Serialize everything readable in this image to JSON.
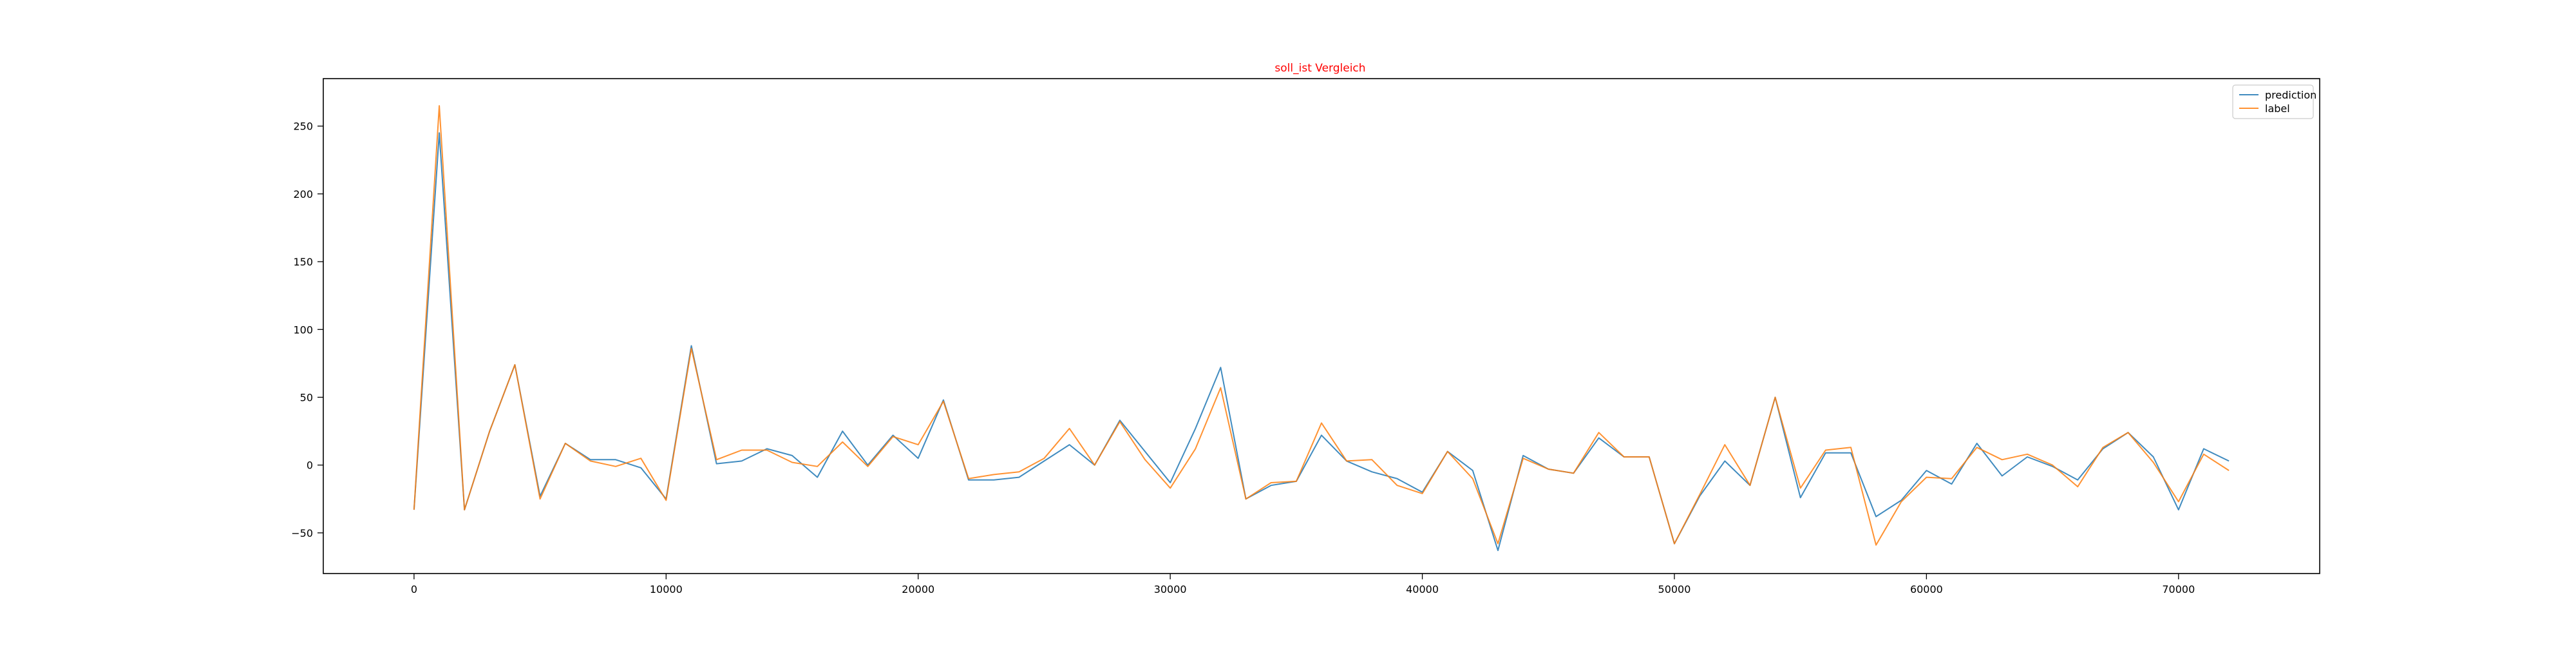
{
  "chart_data": {
    "type": "line",
    "title": "soll_ist Vergleich",
    "title_color": "#ff0000",
    "xlabel": "",
    "ylabel": "",
    "xlim": [
      -3600,
      75600
    ],
    "ylim": [
      -80,
      285
    ],
    "xticks": [
      0,
      10000,
      20000,
      30000,
      40000,
      50000,
      60000,
      70000
    ],
    "yticks": [
      -50,
      0,
      50,
      100,
      150,
      200,
      250
    ],
    "grid": false,
    "legend_position": "top-right",
    "x": [
      0,
      1000,
      2000,
      3000,
      4000,
      5000,
      6000,
      7000,
      8000,
      9000,
      10000,
      11000,
      12000,
      13000,
      14000,
      15000,
      16000,
      17000,
      18000,
      19000,
      20000,
      21000,
      22000,
      23000,
      24000,
      25000,
      26000,
      27000,
      28000,
      29000,
      30000,
      31000,
      32000,
      33000,
      34000,
      35000,
      36000,
      37000,
      38000,
      39000,
      40000,
      41000,
      42000,
      43000,
      44000,
      45000,
      46000,
      47000,
      48000,
      49000,
      50000,
      51000,
      52000,
      53000,
      54000,
      55000,
      56000,
      57000,
      58000,
      59000,
      60000,
      61000,
      62000,
      63000,
      64000,
      65000,
      66000,
      67000,
      68000,
      69000,
      70000,
      71000,
      72000
    ],
    "series": [
      {
        "name": "prediction",
        "color": "#1f77b4",
        "values": [
          -33,
          245,
          -33,
          25,
          74,
          -23,
          16,
          4,
          4,
          -2,
          -25,
          88,
          1,
          3,
          12,
          7,
          -9,
          25,
          0,
          22,
          5,
          48,
          -11,
          -11,
          -9,
          3,
          15,
          0,
          33,
          10,
          -13,
          27,
          72,
          -25,
          -15,
          -12,
          22,
          3,
          -5,
          -10,
          -20,
          10,
          -4,
          -63,
          7,
          -3,
          -6,
          20,
          6,
          6,
          -58,
          -23,
          3,
          -15,
          50,
          -24,
          9,
          9,
          -38,
          -26,
          -4,
          -14,
          16,
          -8,
          6,
          -1,
          -11,
          12,
          24,
          6,
          -33,
          12,
          3
        ]
      },
      {
        "name": "label",
        "color": "#ff7f0e",
        "values": [
          -33,
          265,
          -33,
          25,
          74,
          -25,
          16,
          3,
          -1,
          5,
          -26,
          86,
          4,
          11,
          11,
          2,
          -1,
          17,
          -1,
          21,
          15,
          47,
          -10,
          -7,
          -5,
          5,
          27,
          0,
          32,
          4,
          -17,
          12,
          57,
          -25,
          -13,
          -12,
          31,
          3,
          4,
          -15,
          -21,
          10,
          -10,
          -58,
          5,
          -3,
          -6,
          24,
          6,
          6,
          -58,
          -22,
          15,
          -15,
          50,
          -17,
          11,
          13,
          -59,
          -27,
          -9,
          -10,
          13,
          4,
          8,
          0,
          -16,
          13,
          24,
          2,
          -27,
          8,
          -4
        ]
      }
    ]
  }
}
